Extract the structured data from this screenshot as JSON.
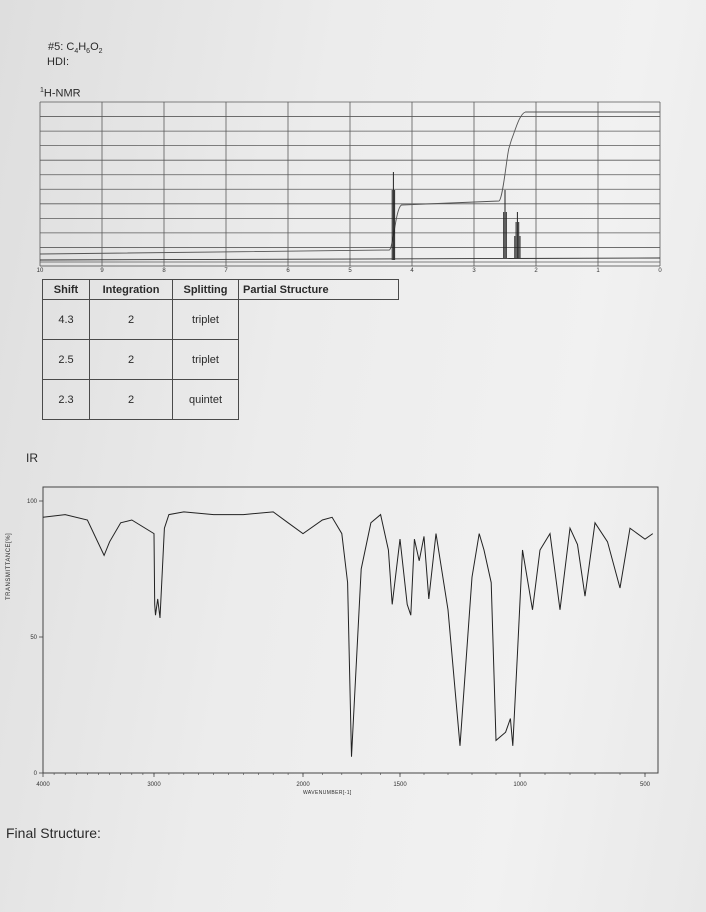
{
  "problem": {
    "number": "#5:",
    "formula": "C4H6O2",
    "hdi_label": "HDI:"
  },
  "nmr": {
    "label": "H-NMR"
  },
  "table": {
    "headers": [
      "Shift",
      "Integration",
      "Splitting",
      "Partial Structure"
    ],
    "rows": [
      {
        "shift": "4.3",
        "integration": "2",
        "splitting": "triplet"
      },
      {
        "shift": "2.5",
        "integration": "2",
        "splitting": "triplet"
      },
      {
        "shift": "2.3",
        "integration": "2",
        "splitting": "quintet"
      }
    ]
  },
  "ir": {
    "label": "IR",
    "y_title": "TRANSMITTANCE[%]",
    "x_title": "WAVENUMBER[-1]"
  },
  "final": {
    "label": "Final Structure:"
  },
  "chart_data": [
    {
      "type": "line",
      "name": "1H-NMR spectrum",
      "x_ticks": [
        "10",
        "9",
        "8",
        "7",
        "6",
        "5",
        "4",
        "3",
        "2",
        "1",
        "0"
      ],
      "xlim": [
        10,
        0
      ],
      "peaks_ppm": [
        4.3,
        2.5,
        2.3
      ],
      "integral_steps": [
        {
          "ppm": 4.3,
          "relative": 2
        },
        {
          "ppm": 2.5,
          "relative": 2
        },
        {
          "ppm": 2.3,
          "relative": 2
        }
      ]
    },
    {
      "type": "line",
      "name": "IR spectrum",
      "x_ticks": [
        "4000",
        "3000",
        "2000",
        "1500",
        "1000",
        "500"
      ],
      "y_ticks": [
        "100",
        "50",
        "0"
      ],
      "xlim": [
        4000,
        450
      ],
      "ylim": [
        0,
        100
      ],
      "x": [
        4000,
        3800,
        3600,
        3450,
        3400,
        3300,
        3200,
        3000,
        2995,
        2990,
        2975,
        2960,
        2930,
        2900,
        2800,
        2600,
        2400,
        2200,
        2100,
        2000,
        1900,
        1850,
        1800,
        1770,
        1750,
        1700,
        1650,
        1600,
        1560,
        1540,
        1500,
        1470,
        1455,
        1440,
        1420,
        1400,
        1380,
        1350,
        1300,
        1250,
        1200,
        1170,
        1150,
        1120,
        1100,
        1060,
        1040,
        1030,
        1010,
        990,
        950,
        920,
        880,
        840,
        800,
        770,
        740,
        700,
        650,
        600,
        560,
        500,
        470
      ],
      "y": [
        94,
        95,
        93,
        80,
        85,
        92,
        93,
        88,
        62,
        58,
        64,
        57,
        90,
        95,
        96,
        95,
        95,
        96,
        92,
        88,
        93,
        94,
        88,
        70,
        6,
        75,
        92,
        95,
        82,
        62,
        86,
        62,
        58,
        86,
        78,
        87,
        64,
        88,
        60,
        10,
        72,
        88,
        82,
        70,
        12,
        15,
        20,
        10,
        45,
        82,
        60,
        82,
        88,
        60,
        90,
        84,
        65,
        92,
        85,
        68,
        90,
        86,
        88
      ]
    }
  ]
}
